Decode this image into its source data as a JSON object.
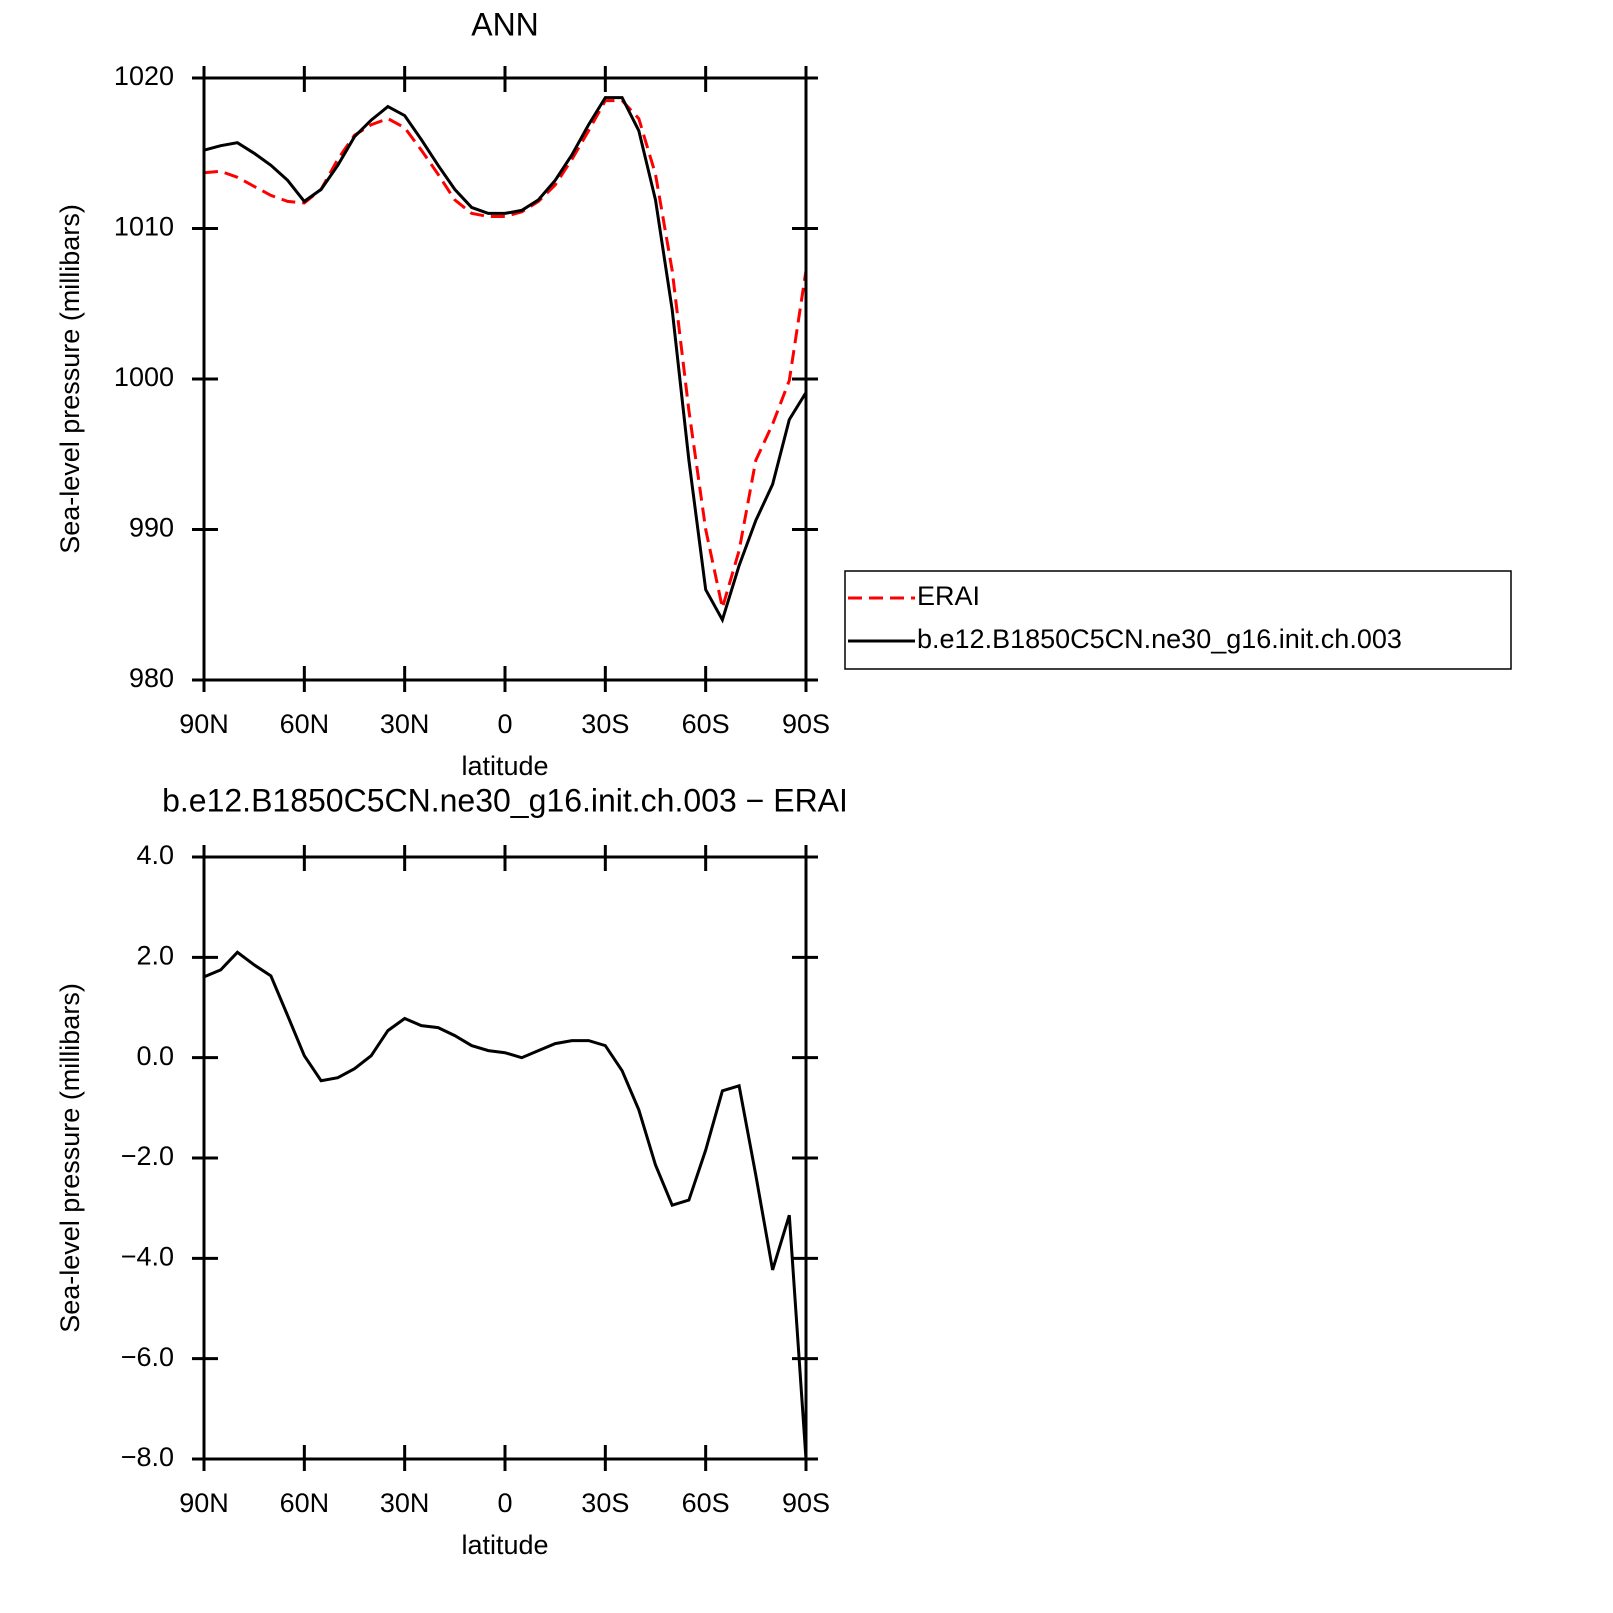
{
  "chart_data": [
    {
      "type": "line",
      "title": "ANN",
      "xlabel": "latitude",
      "ylabel": "Sea-level pressure (millibars)",
      "x": [
        90,
        85,
        80,
        75,
        70,
        65,
        60,
        55,
        50,
        45,
        40,
        35,
        30,
        25,
        20,
        15,
        10,
        5,
        0,
        -5,
        -10,
        -15,
        -20,
        -25,
        -30,
        -35,
        -40,
        -45,
        -50,
        -55,
        -60,
        -65,
        -70,
        -75,
        -80,
        -85,
        -90
      ],
      "series": [
        {
          "name": "ERAI",
          "color": "#ff0000",
          "dashed": true,
          "values": [
            1013.7,
            1013.8,
            1013.4,
            1012.8,
            1012.2,
            1011.8,
            1011.7,
            1012.6,
            1014.6,
            1016.2,
            1016.9,
            1017.3,
            1016.7,
            1015.2,
            1013.6,
            1011.9,
            1011.0,
            1010.8,
            1010.8,
            1011.1,
            1011.8,
            1012.9,
            1014.6,
            1016.5,
            1018.5,
            1018.5,
            1017.3,
            1013.6,
            1007.2,
            997.9,
            990.0,
            984.8,
            988.6,
            994.6,
            997.0,
            999.9,
            1007.2
          ]
        },
        {
          "name": "b.e12.B1850C5CN.ne30_g16.init.ch.003",
          "color": "#000000",
          "dashed": false,
          "values": [
            1015.2,
            1015.5,
            1015.7,
            1015.0,
            1014.2,
            1013.2,
            1011.8,
            1012.6,
            1014.2,
            1016.1,
            1017.2,
            1018.1,
            1017.5,
            1015.9,
            1014.2,
            1012.6,
            1011.4,
            1011.0,
            1011.0,
            1011.2,
            1011.9,
            1013.2,
            1014.9,
            1016.9,
            1018.7,
            1018.7,
            1016.5,
            1011.9,
            1004.6,
            994.6,
            986.0,
            984.0,
            987.6,
            990.6,
            993.0,
            997.3,
            999.1
          ]
        }
      ],
      "xlim": [
        90,
        -90
      ],
      "xticks": [
        {
          "value": 90,
          "label": "90N"
        },
        {
          "value": 60,
          "label": "60N"
        },
        {
          "value": 30,
          "label": "30N"
        },
        0,
        {
          "value": -30,
          "label": "30S"
        },
        {
          "value": -60,
          "label": "60S"
        },
        {
          "value": -90,
          "label": "90S"
        }
      ],
      "ylim": [
        980,
        1020
      ],
      "yticks": [
        980,
        990,
        1000,
        1010,
        1020
      ],
      "legend": "right"
    },
    {
      "type": "line",
      "title": "b.e12.B1850C5CN.ne30_g16.init.ch.003 − ERAI",
      "xlabel": "latitude",
      "ylabel": "Sea-level pressure (millibars)",
      "x": [
        90,
        85,
        80,
        75,
        70,
        65,
        60,
        55,
        50,
        45,
        40,
        35,
        30,
        25,
        20,
        15,
        10,
        5,
        0,
        -5,
        -10,
        -15,
        -20,
        -25,
        -30,
        -35,
        -40,
        -45,
        -50,
        -55,
        -60,
        -65,
        -70,
        -75,
        -80,
        -85,
        -90
      ],
      "series": [
        {
          "color": "#000000",
          "dashed": false,
          "values": [
            1.61,
            1.75,
            2.1,
            1.85,
            1.63,
            0.84,
            0.04,
            -0.46,
            -0.4,
            -0.22,
            0.04,
            0.54,
            0.78,
            0.64,
            0.6,
            0.44,
            0.24,
            0.14,
            0.1,
            0.0,
            0.14,
            0.28,
            0.34,
            0.34,
            0.24,
            -0.26,
            -1.04,
            -2.14,
            -2.94,
            -2.84,
            -1.84,
            -0.66,
            -0.56,
            -2.34,
            -4.23,
            -3.14,
            -8.0
          ]
        }
      ],
      "xlim": [
        90,
        -90
      ],
      "xticks": [
        {
          "value": 90,
          "label": "90N"
        },
        {
          "value": 60,
          "label": "60N"
        },
        {
          "value": 30,
          "label": "30N"
        },
        0,
        {
          "value": -30,
          "label": "30S"
        },
        {
          "value": -60,
          "label": "60S"
        },
        {
          "value": -90,
          "label": "90S"
        }
      ],
      "ylim": [
        -8,
        4
      ],
      "yticks": [
        {
          "value": -8,
          "label": "−8.0"
        },
        {
          "value": -6,
          "label": "−6.0"
        },
        {
          "value": -4,
          "label": "−4.0"
        },
        {
          "value": -2,
          "label": "−2.0"
        },
        {
          "value": 0,
          "label": "0.0"
        },
        {
          "value": 2,
          "label": "2.0"
        },
        {
          "value": 4,
          "label": "4.0"
        }
      ]
    }
  ]
}
